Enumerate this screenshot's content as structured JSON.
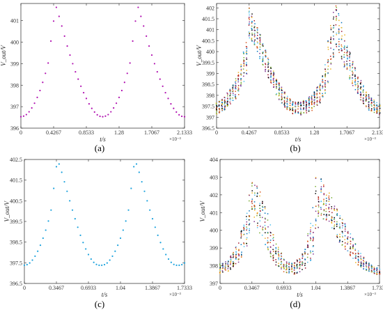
{
  "colors": {
    "a": "#b00fb0",
    "c": "#1ba2dd",
    "d_palette": [
      "#0072bd",
      "#d95319",
      "#edb120",
      "#7e2f8e",
      "#77ac30",
      "#4dbeee",
      "#a2142f",
      "#000000"
    ]
  },
  "chart_data": [
    {
      "id": "a",
      "type": "scatter",
      "caption": "(a)",
      "xlabel": "t/s",
      "ylabel": "V_out/V",
      "x_exponent": "×10⁻³",
      "xlim": [
        0,
        2.1333
      ],
      "ylim": [
        396,
        401.8
      ],
      "xticks": [
        0,
        0.4267,
        0.8533,
        1.28,
        1.7067,
        2.1333
      ],
      "xtick_labels": [
        "0",
        "0.4267",
        "0.8533",
        "1.28",
        "1.7067",
        "2.1333"
      ],
      "yticks": [
        396,
        397,
        398,
        399,
        400,
        401
      ],
      "ytick_labels": [
        "396",
        "397",
        "398",
        "399",
        "400",
        "401"
      ],
      "points": [
        [
          0.0,
          396.53
        ],
        [
          0.0356,
          396.56
        ],
        [
          0.0711,
          396.63
        ],
        [
          0.1067,
          396.76
        ],
        [
          0.1422,
          396.94
        ],
        [
          0.1778,
          397.16
        ],
        [
          0.2133,
          397.43
        ],
        [
          0.2489,
          397.75
        ],
        [
          0.2844,
          398.13
        ],
        [
          0.32,
          398.55
        ],
        [
          0.3556,
          399.03
        ],
        [
          0.3911,
          400.05
        ],
        [
          0.4267,
          400.98
        ],
        [
          0.4622,
          401.62
        ],
        [
          0.4978,
          401.2
        ],
        [
          0.5333,
          400.75
        ],
        [
          0.5689,
          400.28
        ],
        [
          0.6044,
          399.82
        ],
        [
          0.64,
          399.4
        ],
        [
          0.6756,
          399.0
        ],
        [
          0.7111,
          398.62
        ],
        [
          0.7467,
          398.28
        ],
        [
          0.7822,
          397.95
        ],
        [
          0.8178,
          397.65
        ],
        [
          0.8533,
          397.38
        ],
        [
          0.8889,
          397.13
        ],
        [
          0.9244,
          396.92
        ],
        [
          0.96,
          396.75
        ],
        [
          0.9956,
          396.62
        ],
        [
          1.0311,
          396.55
        ],
        [
          1.0667,
          396.53
        ],
        [
          1.1022,
          396.56
        ],
        [
          1.1378,
          396.63
        ],
        [
          1.1733,
          396.76
        ],
        [
          1.2089,
          396.94
        ],
        [
          1.2444,
          397.16
        ],
        [
          1.28,
          397.43
        ],
        [
          1.3156,
          397.75
        ],
        [
          1.3511,
          398.13
        ],
        [
          1.3867,
          398.55
        ],
        [
          1.4222,
          399.03
        ],
        [
          1.4578,
          400.05
        ],
        [
          1.4933,
          400.98
        ],
        [
          1.5289,
          401.62
        ],
        [
          1.5644,
          401.2
        ],
        [
          1.6,
          400.75
        ],
        [
          1.6356,
          400.28
        ],
        [
          1.6711,
          399.82
        ],
        [
          1.7067,
          399.4
        ],
        [
          1.7422,
          399.0
        ],
        [
          1.7778,
          398.62
        ],
        [
          1.8133,
          398.28
        ],
        [
          1.8489,
          397.95
        ],
        [
          1.8844,
          397.65
        ],
        [
          1.92,
          397.38
        ],
        [
          1.9556,
          397.13
        ],
        [
          1.9911,
          396.92
        ],
        [
          2.0267,
          396.75
        ],
        [
          2.0622,
          396.62
        ],
        [
          2.0978,
          396.55
        ],
        [
          2.1333,
          396.53
        ]
      ]
    },
    {
      "id": "b",
      "type": "scatter",
      "caption": "(b)",
      "xlabel": "t/s",
      "ylabel": "V_out/V",
      "x_exponent": "×10⁻³",
      "xlim": [
        0,
        2.1333
      ],
      "ylim": [
        396.5,
        402.2
      ],
      "xticks": [
        0,
        0.4267,
        0.8533,
        1.28,
        1.7067,
        2.1333
      ],
      "xtick_labels": [
        "0",
        "0.4267",
        "0.8533",
        "1.28",
        "1.7067",
        "2.1333"
      ],
      "yticks": [
        396.5,
        397,
        397.5,
        398,
        398.5,
        399,
        399.5,
        400,
        400.5,
        401,
        401.5,
        402
      ],
      "ytick_labels": [
        "396.5",
        "397",
        "397.5",
        "398",
        "398.5",
        "399",
        "399.5",
        "400",
        "400.5",
        "401",
        "401.5",
        "402"
      ],
      "envelope": {
        "t": [
          0.0,
          0.1,
          0.2,
          0.3,
          0.4,
          0.4267,
          0.5,
          0.6,
          0.7,
          0.8,
          0.9,
          1.0,
          1.1,
          1.2,
          1.3,
          1.4,
          1.5,
          1.55,
          1.6,
          1.7,
          1.8,
          1.9,
          2.0,
          2.1,
          2.1333
        ],
        "low": [
          397.15,
          397.3,
          397.6,
          398.1,
          399.0,
          400.6,
          400.3,
          399.4,
          398.6,
          397.9,
          397.4,
          397.15,
          397.1,
          397.2,
          397.4,
          397.8,
          399.0,
          400.1,
          399.9,
          399.0,
          398.3,
          397.7,
          397.3,
          397.15,
          397.1
        ],
        "high": [
          397.7,
          397.9,
          398.4,
          399.2,
          400.6,
          402.0,
          401.5,
          400.5,
          399.5,
          398.7,
          398.1,
          397.7,
          397.7,
          397.9,
          398.3,
          399.0,
          401.5,
          402.2,
          401.9,
          400.5,
          399.4,
          398.6,
          398.0,
          397.7,
          397.6
        ]
      },
      "sampling": {
        "dt": 0.0356,
        "samples_per_t": 18
      }
    },
    {
      "id": "c",
      "type": "scatter",
      "caption": "(c)",
      "xlabel": "t/s",
      "ylabel": "V_out/V",
      "x_exponent": "×10⁻³",
      "xlim": [
        0,
        1.7333
      ],
      "ylim": [
        396.5,
        402.5
      ],
      "xticks": [
        0,
        0.3467,
        0.6933,
        1.04,
        1.3867,
        1.7333
      ],
      "xtick_labels": [
        "0",
        "0.3467",
        "0.6933",
        "1.04",
        "1.3867",
        "1.7333"
      ],
      "yticks": [
        396.5,
        397.5,
        398.5,
        399.5,
        400.5,
        401.5,
        402.5
      ],
      "ytick_labels": [
        "396.5",
        "397.5",
        "398.5",
        "399.5",
        "400.5",
        "401.5",
        "402.5"
      ],
      "points": [
        [
          0.0,
          397.38
        ],
        [
          0.0289,
          397.41
        ],
        [
          0.0578,
          397.49
        ],
        [
          0.0867,
          397.63
        ],
        [
          0.1156,
          397.82
        ],
        [
          0.1444,
          398.06
        ],
        [
          0.1733,
          398.35
        ],
        [
          0.2022,
          398.69
        ],
        [
          0.2311,
          399.08
        ],
        [
          0.26,
          399.52
        ],
        [
          0.2889,
          400.05
        ],
        [
          0.3178,
          401.1
        ],
        [
          0.3467,
          402.15
        ],
        [
          0.3756,
          402.28
        ],
        [
          0.4044,
          401.88
        ],
        [
          0.4333,
          401.42
        ],
        [
          0.4622,
          400.96
        ],
        [
          0.4911,
          400.5
        ],
        [
          0.52,
          400.05
        ],
        [
          0.5489,
          399.63
        ],
        [
          0.5778,
          399.22
        ],
        [
          0.6067,
          398.83
        ],
        [
          0.6356,
          398.48
        ],
        [
          0.6644,
          398.17
        ],
        [
          0.6933,
          397.9
        ],
        [
          0.7222,
          397.68
        ],
        [
          0.7511,
          397.52
        ],
        [
          0.78,
          397.42
        ],
        [
          0.8089,
          397.38
        ],
        [
          0.8378,
          397.38
        ],
        [
          0.8667,
          397.41
        ],
        [
          0.8956,
          397.49
        ],
        [
          0.9244,
          397.63
        ],
        [
          0.9533,
          397.82
        ],
        [
          0.9822,
          398.06
        ],
        [
          1.0111,
          398.35
        ],
        [
          1.04,
          398.69
        ],
        [
          1.0689,
          399.08
        ],
        [
          1.0978,
          399.52
        ],
        [
          1.1267,
          400.05
        ],
        [
          1.1556,
          401.1
        ],
        [
          1.1844,
          402.15
        ],
        [
          1.2133,
          402.28
        ],
        [
          1.2422,
          401.88
        ],
        [
          1.2711,
          401.42
        ],
        [
          1.3,
          400.96
        ],
        [
          1.3289,
          400.5
        ],
        [
          1.3578,
          400.05
        ],
        [
          1.3867,
          399.63
        ],
        [
          1.4156,
          399.22
        ],
        [
          1.4444,
          398.83
        ],
        [
          1.4733,
          398.48
        ],
        [
          1.5022,
          398.17
        ],
        [
          1.5311,
          397.9
        ],
        [
          1.56,
          397.68
        ],
        [
          1.5889,
          397.52
        ],
        [
          1.6178,
          397.42
        ],
        [
          1.6467,
          397.38
        ],
        [
          1.6756,
          397.38
        ],
        [
          1.7044,
          397.41
        ],
        [
          1.7333,
          397.49
        ]
      ]
    },
    {
      "id": "d",
      "type": "scatter",
      "caption": "(d)",
      "xlabel": "t/s",
      "ylabel": "V_out/V",
      "x_exponent": "×10⁻³",
      "xlim": [
        0,
        1.7333
      ],
      "ylim": [
        397,
        404
      ],
      "xticks": [
        0,
        0.3467,
        0.6933,
        1.04,
        1.3867,
        1.7333
      ],
      "xtick_labels": [
        "0",
        "0.3467",
        "0.6933",
        "1.04",
        "1.3867",
        "1.7333"
      ],
      "yticks": [
        397,
        398,
        399,
        400,
        401,
        402,
        403,
        404
      ],
      "ytick_labels": [
        "397",
        "398",
        "399",
        "400",
        "401",
        "402",
        "403",
        "404"
      ],
      "envelope": {
        "t": [
          0.0,
          0.1,
          0.2,
          0.3,
          0.3467,
          0.4,
          0.5,
          0.6,
          0.7,
          0.8,
          0.9,
          1.0,
          1.04,
          1.1,
          1.2,
          1.3,
          1.4,
          1.5,
          1.6,
          1.7,
          1.7333
        ],
        "low": [
          397.55,
          397.7,
          398.1,
          399.2,
          400.8,
          400.2,
          399.0,
          398.0,
          397.6,
          397.5,
          397.7,
          398.3,
          399.5,
          400.8,
          400.2,
          399.3,
          398.5,
          398.0,
          397.7,
          397.5,
          397.5
        ],
        "high": [
          398.1,
          398.4,
          399.4,
          401.6,
          403.0,
          402.6,
          401.3,
          399.5,
          398.3,
          398.1,
          398.7,
          400.9,
          403.0,
          402.9,
          402.0,
          401.0,
          400.0,
          399.0,
          398.2,
          397.9,
          397.8
        ]
      },
      "sampling": {
        "dt": 0.0289,
        "samples_per_t": 14
      }
    }
  ]
}
